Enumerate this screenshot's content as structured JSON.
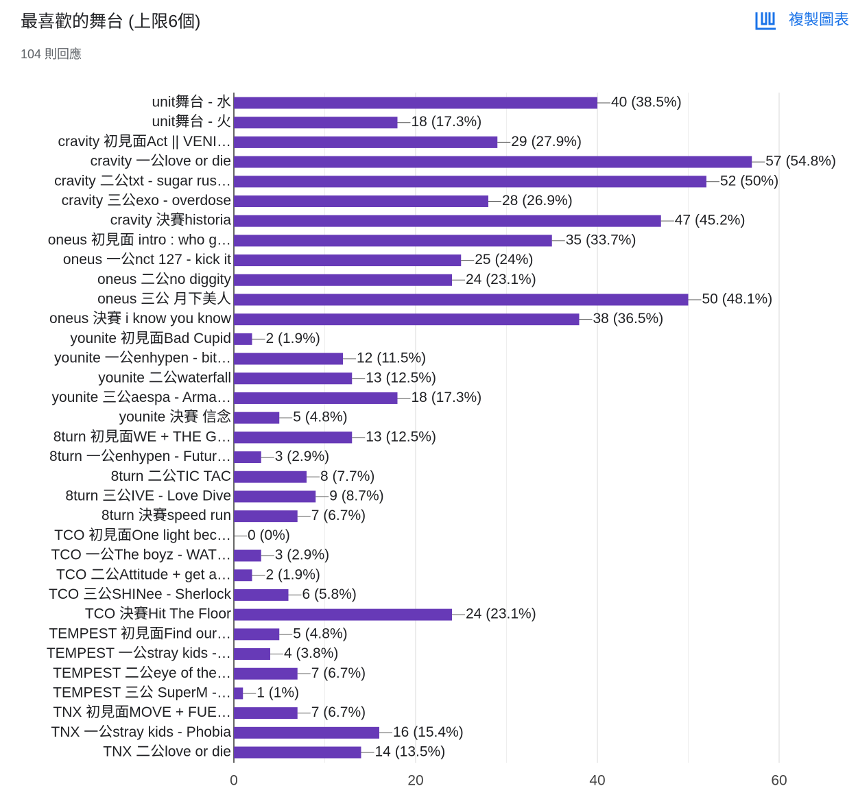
{
  "chart_data": {
    "type": "bar",
    "orientation": "horizontal",
    "title": "最喜歡的舞台 (上限6個)",
    "subtitle": "104 則回應",
    "action": "複製圖表",
    "categories": [
      "unit舞台 - 水",
      "unit舞台 - 火",
      "cravity 初見面Act || VENI…",
      "cravity 一公love or die",
      "cravity 二公txt - sugar rus…",
      "cravity 三公exo - overdose",
      "cravity 決賽historia",
      "oneus 初見面 intro : who g…",
      "oneus 一公nct 127 - kick it",
      "oneus 二公no diggity",
      "oneus 三公 月下美人",
      "oneus 決賽 i know you know",
      "younite 初見面Bad Cupid",
      "younite 一公enhypen - bit…",
      "younite 二公waterfall",
      "younite 三公aespa - Arma…",
      "younite 決賽 信念",
      "8turn 初見面WE + THE G…",
      "8turn 一公enhypen - Futur…",
      "8turn 二公TIC TAC",
      "8turn 三公IVE - Love Dive",
      "8turn 決賽speed run",
      "TCO 初見面One light bec…",
      "TCO 一公The boyz - WAT…",
      "TCO 二公Attitude + get a…",
      "TCO 三公SHINee - Sherlock",
      "TCO 決賽Hit The Floor",
      "TEMPEST 初見面Find our…",
      "TEMPEST 一公stray kids -…",
      "TEMPEST 二公eye of the…",
      "TEMPEST 三公 SuperM -…",
      "TNX 初見面MOVE + FUE…",
      "TNX 一公stray kids - Phobia",
      "TNX 二公love or die"
    ],
    "values": [
      40,
      18,
      29,
      57,
      52,
      28,
      47,
      35,
      25,
      24,
      50,
      38,
      2,
      12,
      13,
      18,
      5,
      13,
      3,
      8,
      9,
      7,
      0,
      3,
      2,
      6,
      24,
      5,
      4,
      7,
      1,
      7,
      16,
      14
    ],
    "value_labels": [
      "40 (38.5%)",
      "18 (17.3%)",
      "29 (27.9%)",
      "57 (54.8%)",
      "52 (50%)",
      "28 (26.9%)",
      "47 (45.2%)",
      "35 (33.7%)",
      "25 (24%)",
      "24 (23.1%)",
      "50 (48.1%)",
      "38 (36.5%)",
      "2 (1.9%)",
      "12 (11.5%)",
      "13 (12.5%)",
      "18 (17.3%)",
      "5 (4.8%)",
      "13 (12.5%)",
      "3 (2.9%)",
      "8 (7.7%)",
      "9 (8.7%)",
      "7 (6.7%)",
      "0 (0%)",
      "3 (2.9%)",
      "2 (1.9%)",
      "6 (5.8%)",
      "24 (23.1%)",
      "5 (4.8%)",
      "4 (3.8%)",
      "7 (6.7%)",
      "1 (1%)",
      "7 (6.7%)",
      "16 (15.4%)",
      "14 (13.5%)"
    ],
    "color": "#673ab7",
    "xlim": [
      0,
      60
    ],
    "xticks": [
      0,
      20,
      40,
      60
    ],
    "minor_grid": [
      10,
      30,
      50
    ],
    "grid": true
  }
}
